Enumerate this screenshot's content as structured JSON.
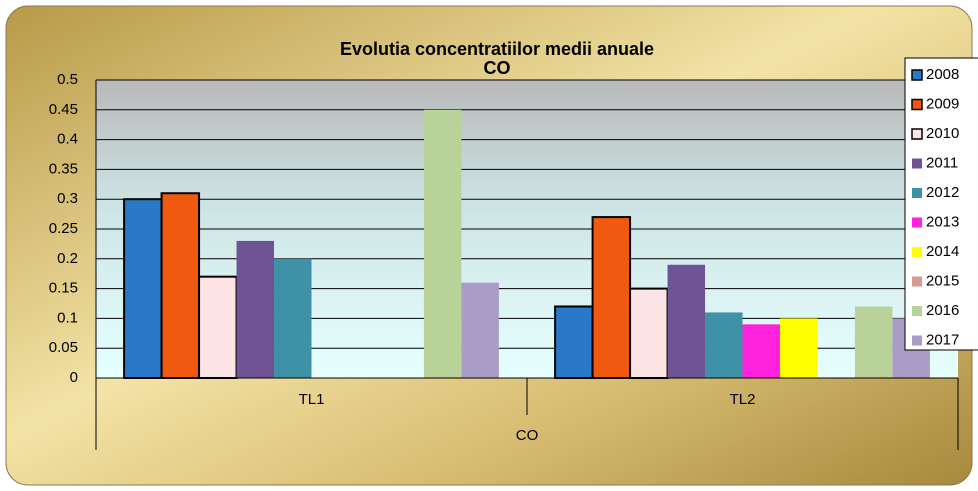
{
  "chart_data": {
    "type": "bar",
    "title": "Evolutia concentratiilor medii anuale",
    "subtitle": "CO",
    "x_label": "CO",
    "categories": [
      "TL1",
      "TL2"
    ],
    "series": [
      {
        "name": "2008",
        "color": "#2a78c8",
        "outlined": true,
        "values": [
          0.3,
          0.12
        ]
      },
      {
        "name": "2009",
        "color": "#f05a10",
        "outlined": true,
        "values": [
          0.31,
          0.27
        ]
      },
      {
        "name": "2010",
        "color": "#fde4e4",
        "outlined": true,
        "values": [
          0.17,
          0.15
        ]
      },
      {
        "name": "2011",
        "color": "#6e5494",
        "outlined": false,
        "values": [
          0.23,
          0.19
        ]
      },
      {
        "name": "2012",
        "color": "#3f91a8",
        "outlined": false,
        "values": [
          0.2,
          0.11
        ]
      },
      {
        "name": "2013",
        "color": "#ff22dd",
        "outlined": false,
        "values": [
          null,
          0.09
        ]
      },
      {
        "name": "2014",
        "color": "#ffff00",
        "outlined": false,
        "values": [
          null,
          0.1
        ]
      },
      {
        "name": "2015",
        "color": "#d49a94",
        "outlined": false,
        "values": [
          null,
          null
        ]
      },
      {
        "name": "2016",
        "color": "#b9d29a",
        "outlined": false,
        "values": [
          0.45,
          0.12
        ]
      },
      {
        "name": "2017",
        "color": "#a99cc7",
        "outlined": false,
        "values": [
          0.16,
          0.1
        ]
      }
    ],
    "ylim": [
      0,
      0.5
    ],
    "yticks": [
      0,
      0.05,
      0.1,
      0.15,
      0.2,
      0.25,
      0.3,
      0.35,
      0.4,
      0.45,
      0.5
    ],
    "grid": true,
    "legend": "right"
  }
}
